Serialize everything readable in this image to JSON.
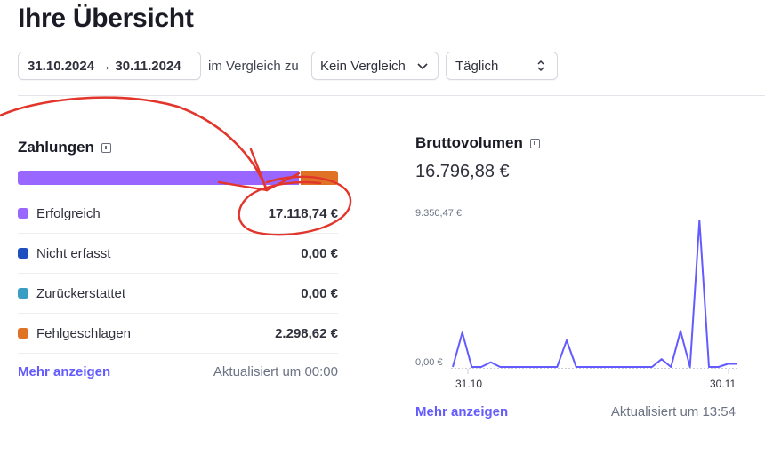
{
  "header": {
    "title": "Ihre Übersicht"
  },
  "filters": {
    "date_range": "31.10.2024 → 30.11.2024",
    "compare_label": "im Vergleich zu",
    "compare_value": "Kein Vergleich",
    "interval_value": "Täglich"
  },
  "payments": {
    "title": "Zahlungen",
    "bar_fractions": {
      "successful": 0.882,
      "failed": 0.118
    },
    "rows": [
      {
        "label": "Erfolgreich",
        "value": "17.118,74 €",
        "color": "#9966ff"
      },
      {
        "label": "Nicht erfasst",
        "value": "0,00 €",
        "color": "#1f4fbf"
      },
      {
        "label": "Zurückerstattet",
        "value": "0,00 €",
        "color": "#3a9ec4"
      },
      {
        "label": "Fehlgeschlagen",
        "value": "2.298,62 €",
        "color": "#e07226"
      }
    ],
    "more_link": "Mehr anzeigen",
    "updated": "Aktualisiert um 00:00"
  },
  "gross_volume": {
    "title": "Bruttovolumen",
    "total": "16.796,88 €",
    "more_link": "Mehr anzeigen",
    "updated": "Aktualisiert um 13:54"
  },
  "chart_data": {
    "type": "line",
    "y_max_label": "9.350,47 €",
    "y_min_label": "0,00 €",
    "x_labels": [
      "31.10",
      "30.11"
    ],
    "ylim": [
      0,
      9350.47
    ],
    "grid": false,
    "line_color": "#635bff",
    "values": [
      0,
      2200,
      0,
      0,
      300,
      0,
      0,
      0,
      0,
      0,
      0,
      0,
      1700,
      0,
      0,
      0,
      0,
      0,
      0,
      0,
      0,
      0,
      500,
      0,
      2300,
      0,
      9350.47,
      0,
      0,
      200,
      200
    ]
  }
}
